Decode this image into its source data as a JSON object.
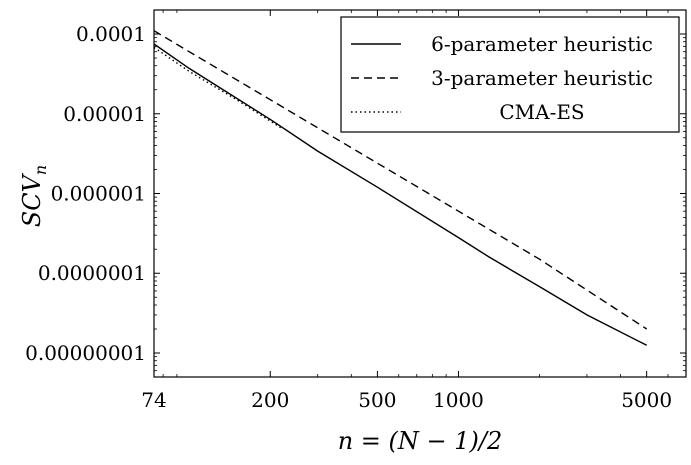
{
  "chart_data": {
    "type": "line",
    "title": "",
    "xlabel": "n = (N − 1)/2",
    "ylabel": "SCV",
    "ylabel_subscript": "n",
    "x_scale": "log",
    "y_scale": "log",
    "xlim": [
      74,
      7000
    ],
    "ylim": [
      5e-09,
      0.0002
    ],
    "x_ticks": [
      74,
      200,
      500,
      1000,
      5000
    ],
    "x_tick_labels": [
      "74",
      "200",
      "500",
      "1000",
      "5000"
    ],
    "y_ticks": [
      1e-08,
      1e-07,
      1e-06,
      1e-05,
      0.0001
    ],
    "y_tick_labels": [
      "0.00000001",
      "0.0000001",
      "0.000001",
      "0.00001",
      "0.0001"
    ],
    "grid": false,
    "legend_position": "top-right",
    "series": [
      {
        "name": "6-parameter heuristic",
        "style": "solid",
        "points": [
          [
            74,
            7.5e-05
          ],
          [
            100,
            3.7e-05
          ],
          [
            200,
            8.5e-06
          ],
          [
            300,
            3.4e-06
          ],
          [
            500,
            1.2e-06
          ],
          [
            1000,
            2.8e-07
          ],
          [
            1300,
            1.6e-07
          ],
          [
            1500,
            1.2e-07
          ],
          [
            2000,
            6.8e-08
          ],
          [
            3000,
            3e-08
          ],
          [
            5000,
            1.25e-08
          ]
        ]
      },
      {
        "name": "3-parameter heuristic",
        "style": "dashed",
        "points": [
          [
            74,
            0.00011
          ],
          [
            100,
            6e-05
          ],
          [
            200,
            1.5e-05
          ],
          [
            500,
            2.4e-06
          ],
          [
            1000,
            6e-07
          ],
          [
            2000,
            1.5e-07
          ],
          [
            5000,
            2e-08
          ]
        ]
      },
      {
        "name": "CMA-ES",
        "style": "dotted",
        "points": [
          [
            74,
            6.8e-05
          ],
          [
            100,
            3.4e-05
          ],
          [
            150,
            1.5e-05
          ],
          [
            220,
            6.6e-06
          ]
        ]
      }
    ]
  }
}
